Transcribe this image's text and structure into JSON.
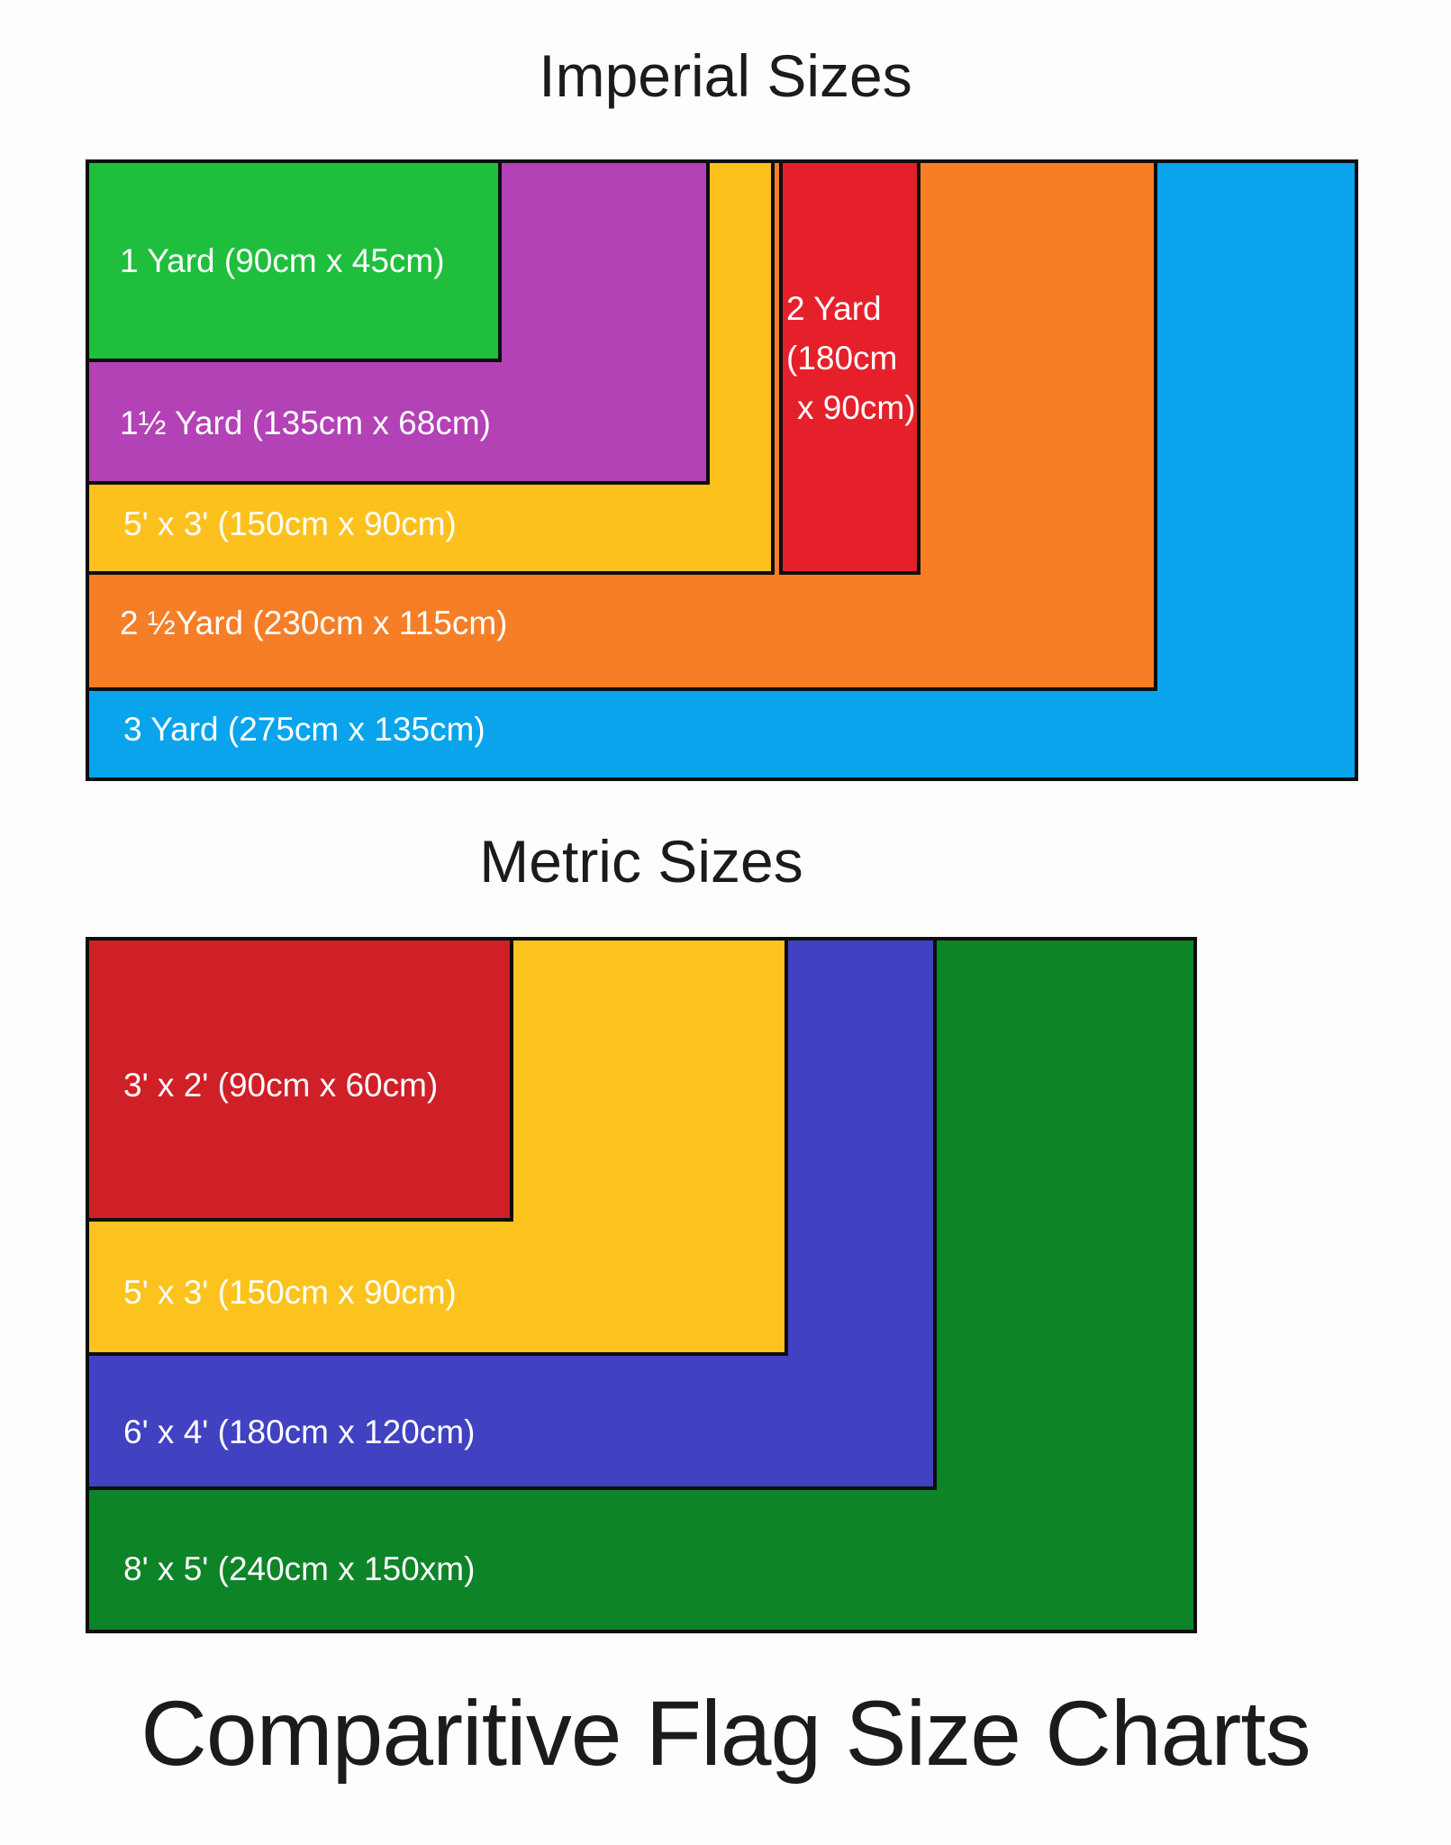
{
  "imperial": {
    "title": "Imperial Sizes",
    "flags": [
      {
        "label": "1 Yard (90cm x 45cm)",
        "color": "#1fbf3d"
      },
      {
        "label": "1½ Yard (135cm x 68cm)",
        "color": "#b342b6"
      },
      {
        "label": "5' x 3' (150cm x 90cm)",
        "color": "#fcc11d"
      },
      {
        "label": "2 Yard (180cm x 90cm)",
        "lines": [
          "2 Yard",
          "(180cm",
          "x 90cm)"
        ],
        "color": "#e6202b"
      },
      {
        "label": "2 ½Yard (230cm x 115cm)",
        "color": "#f67e27"
      },
      {
        "label": "3 Yard (275cm x 135cm)",
        "color": "#09a4ec"
      }
    ]
  },
  "metric": {
    "title": "Metric Sizes",
    "flags": [
      {
        "label": "3' x 2' (90cm x 60cm)",
        "color": "#cf2027"
      },
      {
        "label": "5' x 3' (150cm x 90cm)",
        "color": "#fcc31f"
      },
      {
        "label": "6' x 4' (180cm x 120cm)",
        "color": "#4142c2"
      },
      {
        "label": "8' x 5' (240cm x 150xm)",
        "color": "#0e8428"
      }
    ]
  },
  "footer": {
    "title": "Comparitive Flag Size Charts"
  }
}
